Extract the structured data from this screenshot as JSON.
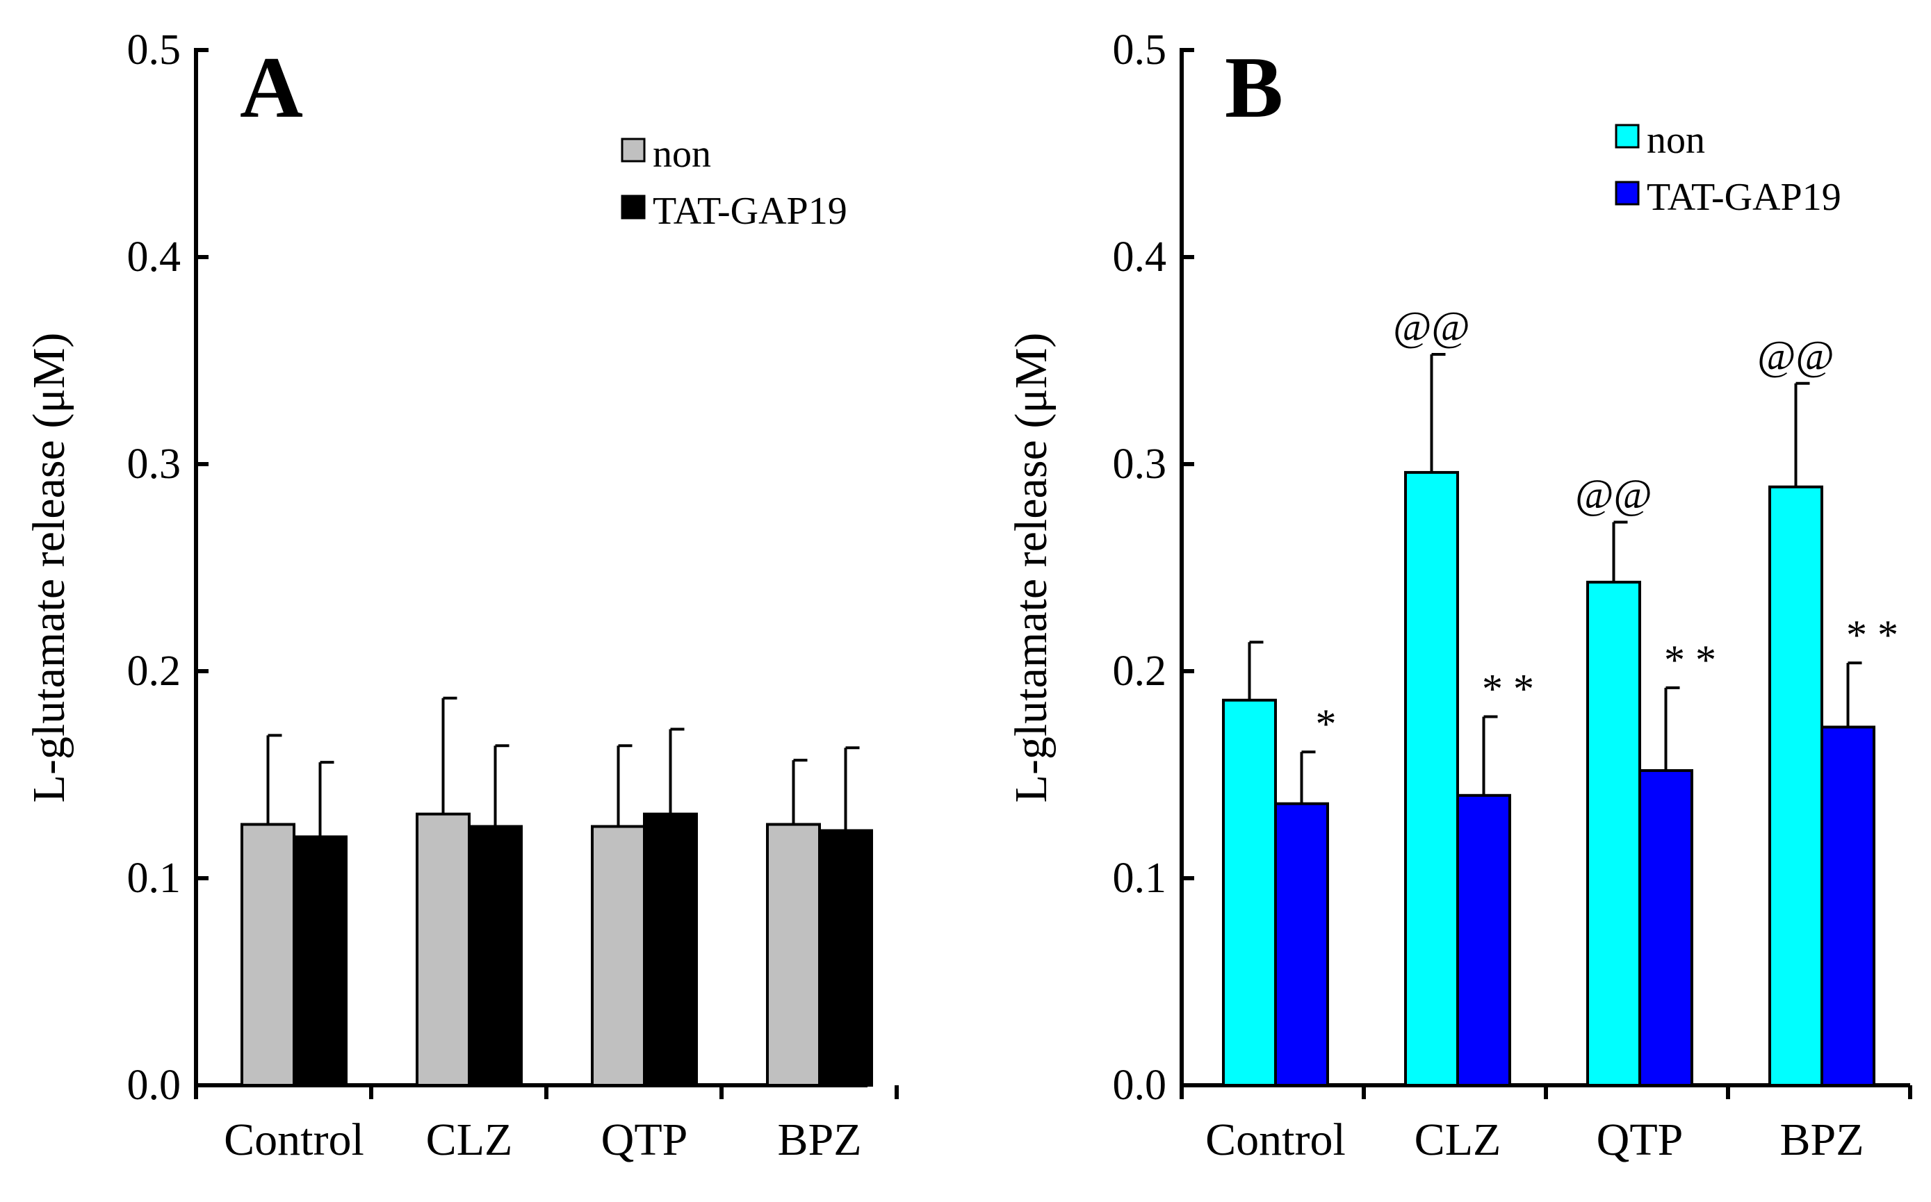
{
  "chart_data": [
    {
      "type": "bar",
      "panel": "A",
      "ylabel": "L-glutamate release (μM)",
      "ylim": [
        0,
        0.5
      ],
      "yticks": [
        "0.0",
        "0.1",
        "0.2",
        "0.3",
        "0.4",
        "0.5"
      ],
      "categories": [
        "Control",
        "CLZ",
        "QTP",
        "BPZ"
      ],
      "legend_position": "top-right",
      "series": [
        {
          "name": "non",
          "color": "#c0c0c0",
          "values": [
            0.126,
            0.131,
            0.125,
            0.126
          ],
          "errors": [
            0.043,
            0.056,
            0.039,
            0.031
          ]
        },
        {
          "name": "TAT-GAP19",
          "color": "#000000",
          "values": [
            0.12,
            0.125,
            0.131,
            0.123
          ],
          "errors": [
            0.036,
            0.039,
            0.041,
            0.04
          ]
        }
      ],
      "annotations": []
    },
    {
      "type": "bar",
      "panel": "B",
      "ylabel": "L-glutamate release (μM)",
      "ylim": [
        0,
        0.5
      ],
      "yticks": [
        "0.0",
        "0.1",
        "0.2",
        "0.3",
        "0.4",
        "0.5"
      ],
      "categories": [
        "Control",
        "CLZ",
        "QTP",
        "BPZ"
      ],
      "legend_position": "top-right",
      "series": [
        {
          "name": "non",
          "color": "#00ffff",
          "values": [
            0.186,
            0.296,
            0.243,
            0.289
          ],
          "errors": [
            0.028,
            0.057,
            0.029,
            0.05
          ]
        },
        {
          "name": "TAT-GAP19",
          "color": "#0000ff",
          "values": [
            0.136,
            0.14,
            0.152,
            0.173
          ],
          "errors": [
            0.025,
            0.038,
            0.04,
            0.031
          ]
        }
      ],
      "annotations": [
        {
          "text": "*",
          "series": 1,
          "category": 0
        },
        {
          "text": "@@",
          "series": 0,
          "category": 1
        },
        {
          "text": "**",
          "series": 1,
          "category": 1
        },
        {
          "text": "@@",
          "series": 0,
          "category": 2
        },
        {
          "text": "**",
          "series": 1,
          "category": 2
        },
        {
          "text": "@@",
          "series": 0,
          "category": 3
        },
        {
          "text": "**",
          "series": 1,
          "category": 3
        }
      ]
    }
  ]
}
